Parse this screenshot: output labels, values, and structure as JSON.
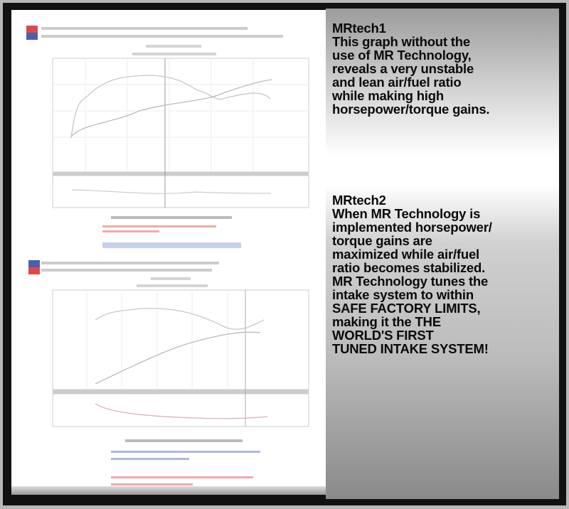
{
  "panel1": {
    "title": "MRtech1",
    "lines": [
      "This graph without the",
      "use of MR Technology,",
      "reveals a very unstable",
      "and lean air/fuel ratio",
      "while making high",
      "horsepower/torque gains."
    ]
  },
  "panel2": {
    "title": "MRtech2",
    "lines": [
      "When MR Technology is",
      "implemented horsepower/",
      "torque gains are",
      "maximized while air/fuel",
      "ratio becomes stabilized.",
      "MR Technology tunes the",
      "intake system to within",
      "SAFE FACTORY LIMITS,",
      "making it the THE",
      "WORLD'S FIRST",
      "TUNED INTAKE SYSTEM!"
    ]
  },
  "colors": {
    "run_red": "#e04848",
    "run_blue": "#4a5fb0",
    "curve_gray": "#b0b0b0"
  }
}
